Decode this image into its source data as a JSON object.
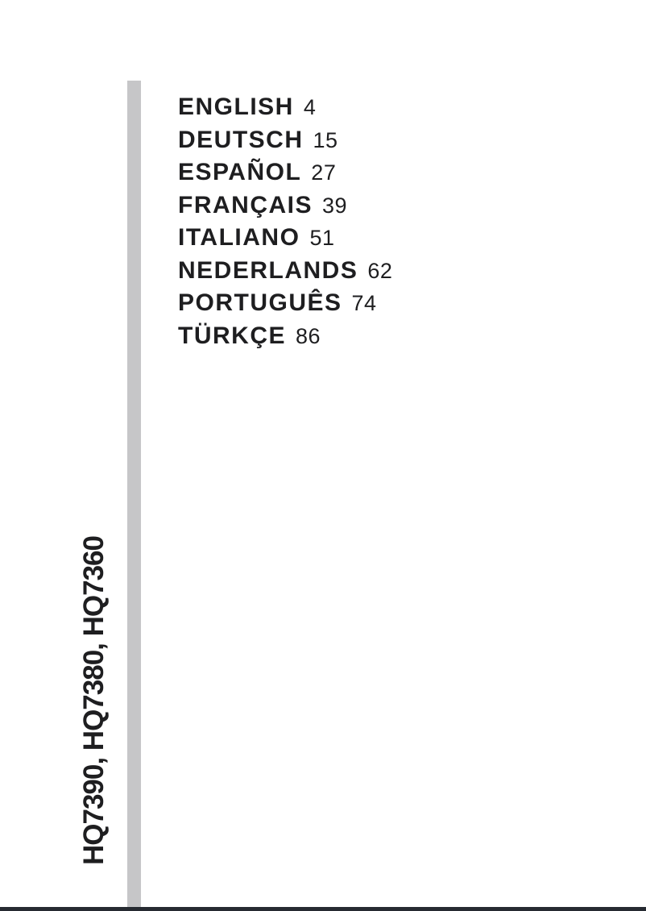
{
  "page": {
    "background": "#ffffff",
    "text_color": "#1e1e20",
    "accent_bar_color": "#c6c6c8",
    "bottom_rule_color": "#262a31"
  },
  "toc": {
    "entries": [
      {
        "label": "ENGLISH",
        "page": "4"
      },
      {
        "label": "DEUTSCH",
        "page": "15"
      },
      {
        "label": "ESPAÑOL",
        "page": "27"
      },
      {
        "label": "FRANÇAIS",
        "page": "39"
      },
      {
        "label": "ITALIANO",
        "page": "51"
      },
      {
        "label": "NEDERLANDS",
        "page": "62"
      },
      {
        "label": "PORTUGUÊS",
        "page": "74"
      },
      {
        "label": "TÜRKÇE",
        "page": "86"
      }
    ]
  },
  "side_label": {
    "models": "HQ7390, HQ7380, HQ7360"
  }
}
